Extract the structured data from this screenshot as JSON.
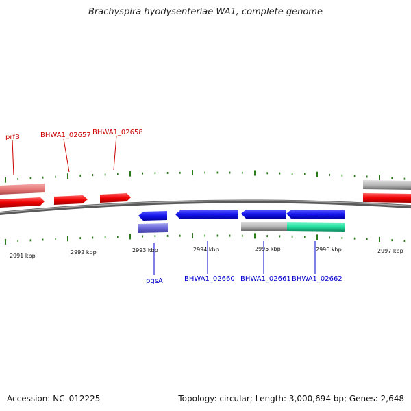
{
  "title": "Brachyspira hyodysenteriae WA1, complete genome",
  "footer": {
    "accession": "Accession: NC_012225",
    "topology": "Topology: circular; Length: 3,000,694 bp; Genes: 2,648"
  },
  "colors": {
    "forward_gene": "#ee0000",
    "forward_gene_light": "#e87a7a",
    "reverse_gene": "#1515ee",
    "reverse_gene_light": "#6a68d8",
    "rna_gray": "#b9b9b9",
    "teal": "#22e0a0",
    "tick": "#2a7a1a",
    "backbone": "#777777",
    "forward_label": "#cc0000",
    "reverse_label": "#0000cc"
  },
  "scale_labels": [
    "2991 kbp",
    "2992 kbp",
    "2993 kbp",
    "2994 kbp",
    "2995 kbp",
    "2996 kbp",
    "2997 kbp"
  ],
  "gene_labels": {
    "forward": [
      "prfB",
      "BHWA1_02657",
      "BHWA1_02658"
    ],
    "reverse": [
      "pgsA",
      "BHWA1_02660",
      "BHWA1_02661",
      "BHWA1_02662"
    ]
  }
}
